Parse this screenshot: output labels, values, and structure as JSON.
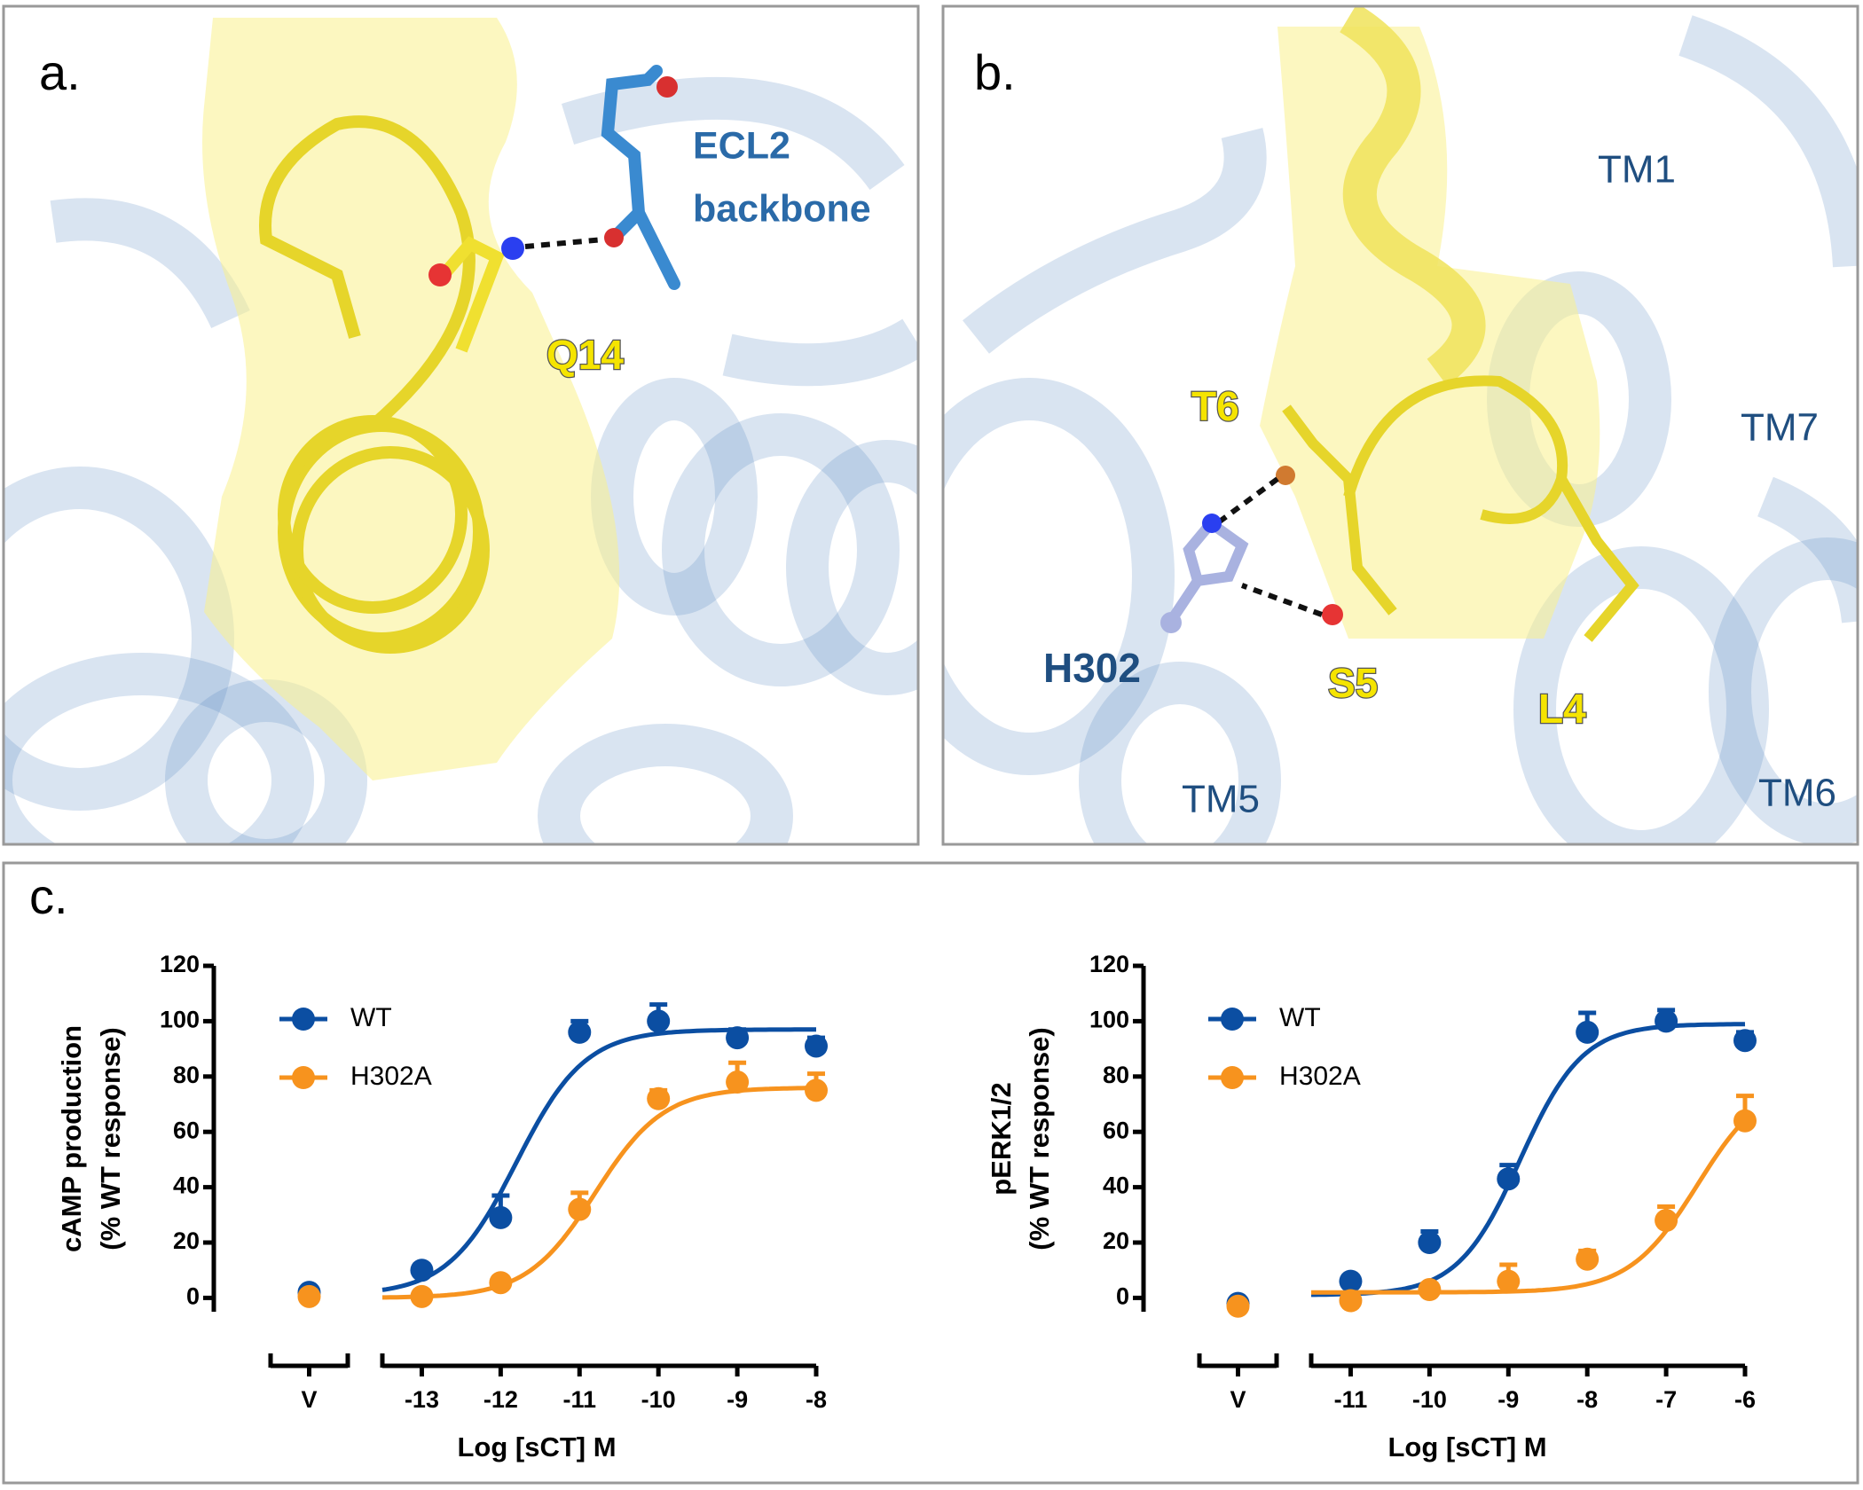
{
  "panel_a": {
    "label": "a.",
    "annotations": [
      "ECL2",
      "backbone",
      "Q14"
    ]
  },
  "panel_b": {
    "label": "b.",
    "annotations": [
      "TM1",
      "TM7",
      "T6",
      "H302",
      "S5",
      "L4",
      "TM5",
      "TM6"
    ]
  },
  "panel_c": {
    "label": "c."
  },
  "chart_data": [
    {
      "type": "scatter",
      "y_label": [
        "cAMP production",
        "(% WT response)"
      ],
      "x_label": "Log [sCT] M",
      "x": [
        -13,
        -12,
        -11,
        -10,
        -9,
        -8
      ],
      "xlim": [
        -13.5,
        -8
      ],
      "xticks": [
        -13,
        -12,
        -11,
        -10,
        -9,
        -8
      ],
      "ylim": [
        -5,
        120
      ],
      "yticks": [
        0,
        20,
        40,
        60,
        80,
        100,
        120
      ],
      "vehicle_label": "V",
      "legend": "upper left",
      "series": [
        {
          "name": "WT",
          "color": "#0b4ea2",
          "values": [
            10,
            29,
            96,
            100,
            94,
            91
          ],
          "errors": [
            2,
            8,
            4,
            6,
            3,
            3
          ],
          "vehicle": 2,
          "fit": {
            "bottom": 1,
            "top": 97,
            "log_ec50": -11.8,
            "hill": 1
          }
        },
        {
          "name": "H302A",
          "color": "#f7931e",
          "values": [
            0.5,
            5.5,
            32,
            72,
            78,
            75
          ],
          "errors": [
            1,
            2,
            6,
            3,
            7,
            6
          ],
          "vehicle": 0.5,
          "fit": {
            "bottom": 0,
            "top": 76,
            "log_ec50": -10.8,
            "hill": 1
          }
        }
      ]
    },
    {
      "type": "scatter",
      "y_label": [
        "pERK1/2",
        "(% WT response)"
      ],
      "x_label": "Log [sCT] M",
      "x": [
        -11,
        -10,
        -9,
        -8,
        -7,
        -6
      ],
      "xlim": [
        -11.5,
        -6
      ],
      "xticks": [
        -11,
        -10,
        -9,
        -8,
        -7,
        -6
      ],
      "ylim": [
        -5,
        120
      ],
      "yticks": [
        0,
        20,
        40,
        60,
        80,
        100,
        120
      ],
      "vehicle_label": "V",
      "legend": "upper left",
      "series": [
        {
          "name": "WT",
          "color": "#0b4ea2",
          "values": [
            6,
            20,
            43,
            96,
            100,
            93
          ],
          "errors": [
            2,
            4,
            5,
            7,
            4,
            3
          ],
          "vehicle": -2,
          "fit": {
            "bottom": 1,
            "top": 99,
            "log_ec50": -8.85,
            "hill": 1.1
          }
        },
        {
          "name": "H302A",
          "color": "#f7931e",
          "values": [
            -1,
            3,
            6,
            14,
            28,
            64
          ],
          "errors": [
            1,
            2,
            6,
            3,
            5,
            9
          ],
          "vehicle": -3,
          "fit": {
            "bottom": 2,
            "top": 80,
            "log_ec50": -6.6,
            "hill": 1
          }
        }
      ]
    }
  ]
}
